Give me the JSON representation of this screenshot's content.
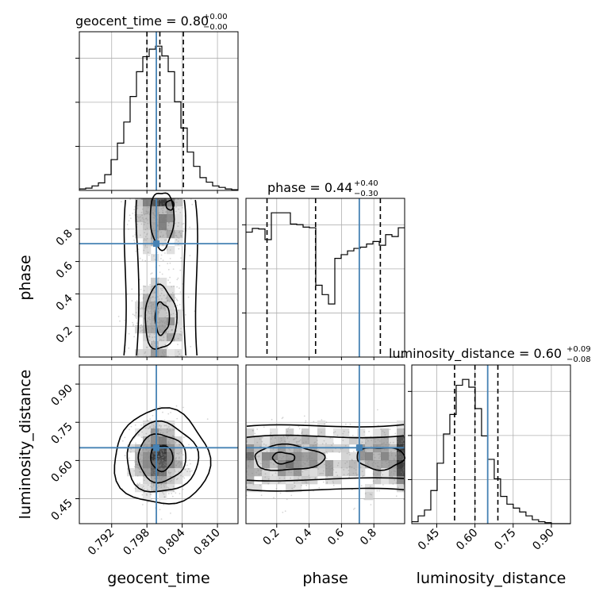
{
  "chart_data": {
    "type": "corner",
    "parameters": [
      "geocent_time",
      "phase",
      "luminosity_distance"
    ],
    "axes_labels": {
      "geocent_time": "geocent_time",
      "phase": "phase",
      "luminosity_distance": "luminosity_distance"
    },
    "ranges": {
      "geocent_time": [
        0.7865,
        0.8135
      ],
      "phase": [
        0.01,
        0.99
      ],
      "luminosity_distance": [
        0.352,
        0.975
      ]
    },
    "ticks": {
      "geocent_time": [
        0.792,
        0.798,
        0.804,
        0.81
      ],
      "phase": [
        0.2,
        0.4,
        0.6,
        0.8
      ],
      "luminosity_distance": [
        0.45,
        0.6,
        0.75,
        0.9
      ]
    },
    "tick_labels": {
      "geocent_time": [
        "0.792",
        "0.798",
        "0.804",
        "0.810"
      ],
      "phase": [
        "0.2",
        "0.4",
        "0.6",
        "0.8"
      ],
      "luminosity_distance": [
        "0.45",
        "0.60",
        "0.75",
        "0.90"
      ]
    },
    "titles": [
      {
        "param": "geocent_time",
        "text": "geocent_time = 0.80",
        "plus": "+0.00",
        "minus": "−0.00"
      },
      {
        "param": "phase",
        "text": "phase = 0.44",
        "plus": "+0.40",
        "minus": "−0.30"
      },
      {
        "param": "luminosity_distance",
        "text": "luminosity_distance = 0.60",
        "plus": "+0.09",
        "minus": "−0.08"
      }
    ],
    "quantiles": {
      "geocent_time": [
        0.798,
        0.8002,
        0.8042
      ],
      "phase": [
        0.14,
        0.44,
        0.84
      ],
      "luminosity_distance": [
        0.52,
        0.6,
        0.69
      ]
    },
    "truths": {
      "geocent_time": 0.7996,
      "phase": 0.71,
      "luminosity_distance": 0.65
    },
    "truth_color": "#4682b4",
    "grid": true,
    "histograms": {
      "geocent_time": {
        "edges": [
          0.7865,
          0.78758,
          0.78866,
          0.78974,
          0.79082,
          0.7919,
          0.79298,
          0.79406,
          0.79514,
          0.79622,
          0.7973,
          0.79838,
          0.79946,
          0.80054,
          0.80162,
          0.8027,
          0.80378,
          0.80486,
          0.80594,
          0.80702,
          0.8081,
          0.80918,
          0.81026,
          0.81134,
          0.81242,
          0.8135
        ],
        "counts": [
          2,
          3,
          6,
          10,
          21,
          41,
          63,
          91,
          125,
          158,
          178,
          188,
          192,
          179,
          158,
          118,
          83,
          51,
          32,
          17,
          11,
          6,
          4,
          2,
          1
        ]
      },
      "phase": {
        "edges": [
          0.01,
          0.0492,
          0.0884,
          0.1276,
          0.1668,
          0.206,
          0.2452,
          0.2844,
          0.3236,
          0.3628,
          0.402,
          0.4412,
          0.4804,
          0.5196,
          0.5588,
          0.598,
          0.6372,
          0.6764,
          0.7156,
          0.7548,
          0.794,
          0.8332,
          0.8724,
          0.9116,
          0.9508,
          0.99
        ],
        "counts": [
          1000,
          1030,
          1025,
          940,
          1155,
          1155,
          1155,
          1065,
          1060,
          1040,
          1035,
          575,
          500,
          425,
          790,
          820,
          850,
          870,
          880,
          905,
          925,
          895,
          980,
          965,
          1035
        ]
      },
      "luminosity_distance": {
        "edges": [
          0.352,
          0.3769,
          0.4018,
          0.4267,
          0.4516,
          0.4765,
          0.5014,
          0.5263,
          0.5512,
          0.5761,
          0.601,
          0.6259,
          0.6508,
          0.6757,
          0.7006,
          0.7255,
          0.7504,
          0.7753,
          0.8002,
          0.8251,
          0.85,
          0.8749,
          0.8998,
          0.9247,
          0.9496,
          0.975
        ],
        "counts": [
          2,
          8,
          14,
          34,
          62,
          92,
          112,
          142,
          148,
          140,
          118,
          90,
          66,
          46,
          28,
          20,
          16,
          12,
          8,
          4,
          2,
          1,
          0,
          0,
          0
        ]
      }
    }
  }
}
